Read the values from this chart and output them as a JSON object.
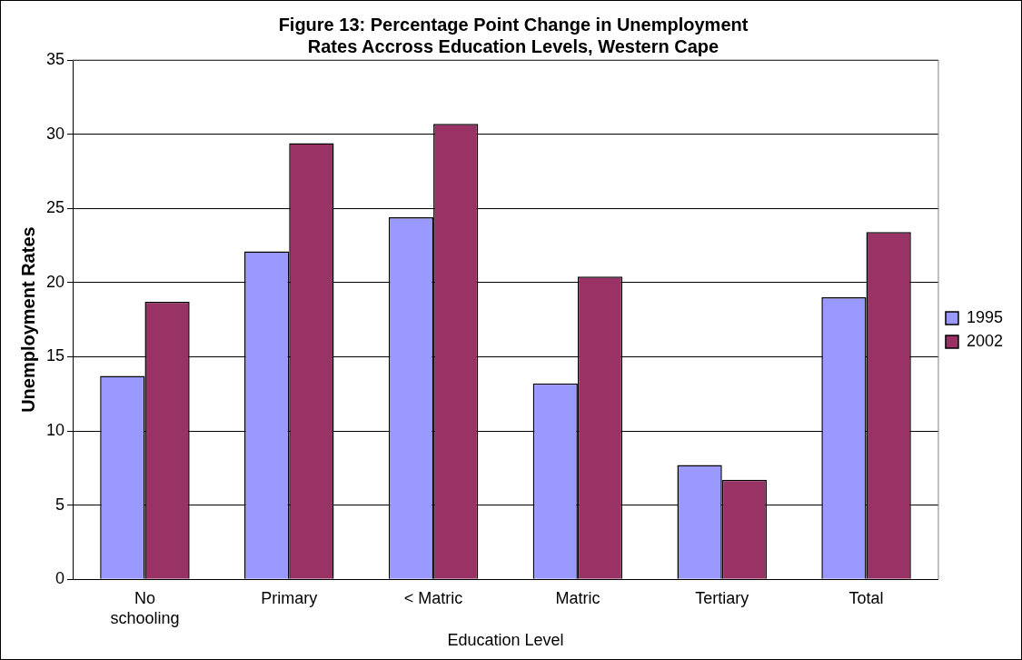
{
  "chart_data": {
    "type": "bar",
    "title": "Figure 13: Percentage Point Change in Unemployment Rates Accross Education Levels, Western Cape",
    "xlabel": "Education Level",
    "ylabel": "Unemployment Rates",
    "categories": [
      "No schooling",
      "Primary",
      "< Matric",
      "Matric",
      "Tertiary",
      "Total"
    ],
    "series": [
      {
        "name": "1995",
        "color": "#9999ff",
        "values": [
          13.7,
          22.1,
          24.4,
          13.2,
          7.7,
          19.0
        ]
      },
      {
        "name": "2002",
        "color": "#993366",
        "values": [
          18.7,
          29.4,
          30.7,
          20.4,
          6.7,
          23.4
        ]
      }
    ],
    "ylim": [
      0,
      35
    ],
    "yticks": [
      0,
      5,
      10,
      15,
      20,
      25,
      30,
      35
    ],
    "grid": "y",
    "legend": "right"
  }
}
